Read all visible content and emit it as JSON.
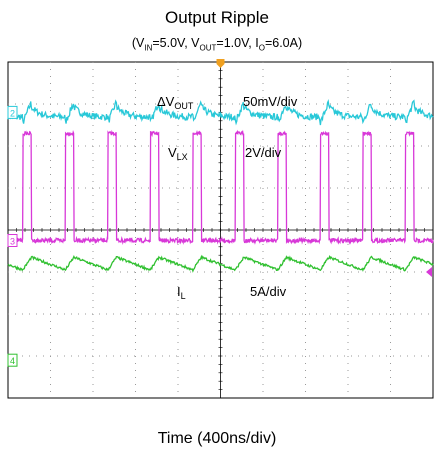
{
  "chart_data": {
    "type": "line",
    "title": "Output Ripple",
    "subtitle": {
      "open": "(V",
      "vin_sub": "IN",
      "vin_val": "=5.0V, V",
      "vout_sub": "OUT",
      "vout_val": "=1.0V, I",
      "io_sub": "O",
      "io_val": "=6.0A)"
    },
    "xlabel": "Time (400ns/div)",
    "grid": true,
    "divisions": {
      "x": 10,
      "y": 8
    },
    "annotations": [
      {
        "id": "dvout",
        "main": "ΔV",
        "sub": "OUT",
        "scale": "50mV/div"
      },
      {
        "id": "vlx",
        "main": "V",
        "sub": "LX",
        "scale": "2V/div"
      },
      {
        "id": "il",
        "main": "I",
        "sub": "L",
        "scale": "5A/div"
      }
    ],
    "markers": [
      {
        "label": "2",
        "color": "#28c8d8"
      },
      {
        "label": "3",
        "color": "#d838d8"
      },
      {
        "label": "4",
        "color": "#30c030"
      }
    ],
    "switching_period_div": 1.0,
    "duty_cycle": 0.2,
    "series": [
      {
        "channel": "2",
        "name": "ΔVOUT",
        "color": "#28c8d8",
        "center_div": 1.2,
        "pk_pk_div": 0.45
      },
      {
        "channel": "3",
        "name": "VLX",
        "color": "#d838d8",
        "low_div": 4.25,
        "high_div": 1.7
      },
      {
        "channel": "4",
        "name": "IL",
        "color": "#30c030",
        "center_div": 4.8,
        "pk_pk_div": 0.3
      }
    ],
    "colors": {
      "grid_border": "#000000",
      "grid_dots": "#9a9a9a",
      "trigger": "#f0a020"
    }
  }
}
